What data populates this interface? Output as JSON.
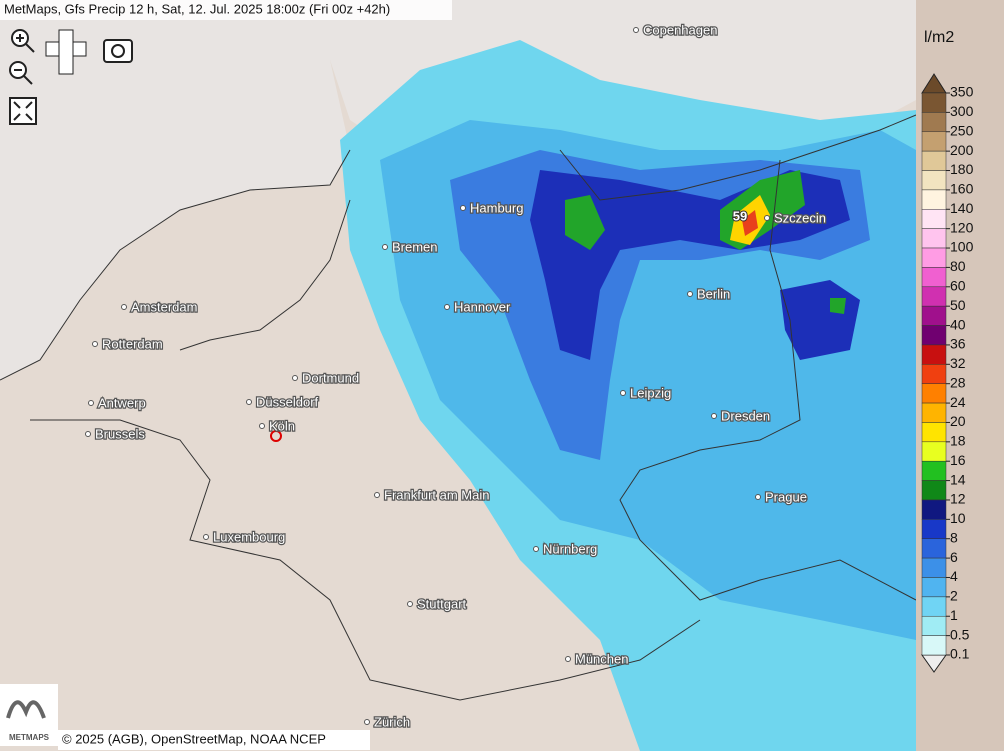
{
  "header": {
    "title": "MetMaps, Gfs Precip 12 h, Sat, 12. Jul. 2025 18:00z (Fri 00z +42h)"
  },
  "map": {
    "cities": [
      "Copenhagen",
      "Hamburg",
      "Bremen",
      "Szczecin",
      "Amsterdam",
      "Hannover",
      "Berlin",
      "Rotterdam",
      "Dortmund",
      "Leipzig",
      "Antwerp",
      "Düsseldorf",
      "Dresden",
      "Brussels",
      "Köln",
      "Frankfurt am Main",
      "Prague",
      "Luxembourg",
      "Nürnberg",
      "Stuttgart",
      "München",
      "Zürich"
    ],
    "max_label": "59"
  },
  "legend": {
    "unit": "l/m2",
    "ticks": [
      350,
      300,
      250,
      200,
      180,
      160,
      140,
      120,
      100,
      80,
      60,
      50,
      40,
      36,
      32,
      28,
      24,
      20,
      18,
      16,
      14,
      12,
      10,
      8,
      6,
      4,
      2,
      1,
      0.5,
      0.1
    ]
  },
  "footer": {
    "attribution": "© 2025 (AGB), OpenStreetMap, NOAA NCEP",
    "logo": "METMAPS"
  }
}
